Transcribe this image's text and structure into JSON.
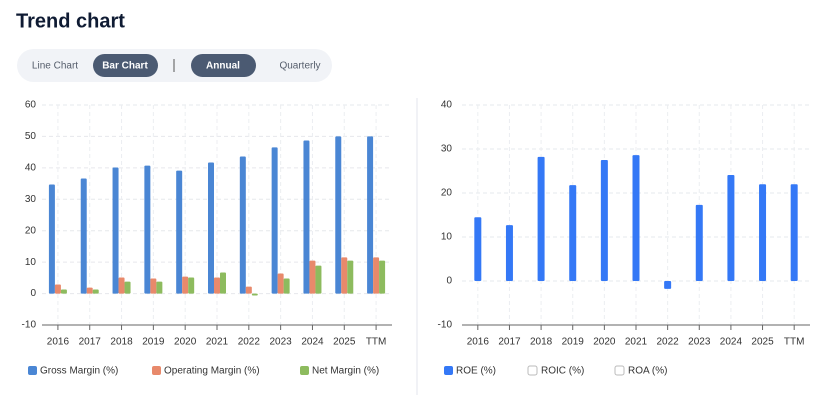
{
  "header": {
    "title": "Trend chart",
    "chart_tabs": [
      "Line Chart",
      "Bar Chart"
    ],
    "selected_chart_tab": 1,
    "period_tabs": [
      "Annual",
      "Quarterly"
    ],
    "selected_period_tab": 0
  },
  "chart_data": [
    {
      "type": "bar",
      "categories": [
        "2016",
        "2017",
        "2018",
        "2019",
        "2020",
        "2021",
        "2022",
        "2023",
        "2024",
        "2025",
        "TTM"
      ],
      "series": [
        {
          "name": "Gross Margin (%)",
          "color": "#4a86d4",
          "values": [
            34.7,
            36.6,
            40.1,
            40.7,
            39.1,
            41.7,
            43.6,
            46.5,
            48.7,
            50,
            50
          ]
        },
        {
          "name": "Operating Margin (%)",
          "color": "#e8896b",
          "values": [
            2.9,
            1.9,
            5.1,
            4.8,
            5.4,
            5.1,
            2.2,
            6.4,
            10.5,
            11.5,
            11.5
          ]
        },
        {
          "name": "Net Margin (%)",
          "color": "#8dbb5e",
          "values": [
            1.3,
            1.3,
            3.8,
            3.8,
            5.1,
            6.7,
            -0.6,
            4.8,
            8.9,
            10.5,
            10.5
          ]
        }
      ],
      "ylim": [
        -10,
        60
      ],
      "yticks": [
        -10,
        0,
        10,
        20,
        30,
        40,
        50,
        60
      ],
      "grid": true
    },
    {
      "type": "bar",
      "categories": [
        "2016",
        "2017",
        "2018",
        "2019",
        "2020",
        "2021",
        "2022",
        "2023",
        "2024",
        "2025",
        "TTM"
      ],
      "series": [
        {
          "name": "ROE (%)",
          "color": "#3478f6",
          "values": [
            14.5,
            12.7,
            28.2,
            21.8,
            27.5,
            28.6,
            -1.8,
            17.3,
            24.1,
            22,
            22
          ]
        }
      ],
      "legend_hidden": [
        "ROIC (%)",
        "ROA (%)"
      ],
      "ylim": [
        -10,
        40
      ],
      "yticks": [
        -10,
        0,
        10,
        20,
        30,
        40
      ],
      "grid": true
    }
  ]
}
